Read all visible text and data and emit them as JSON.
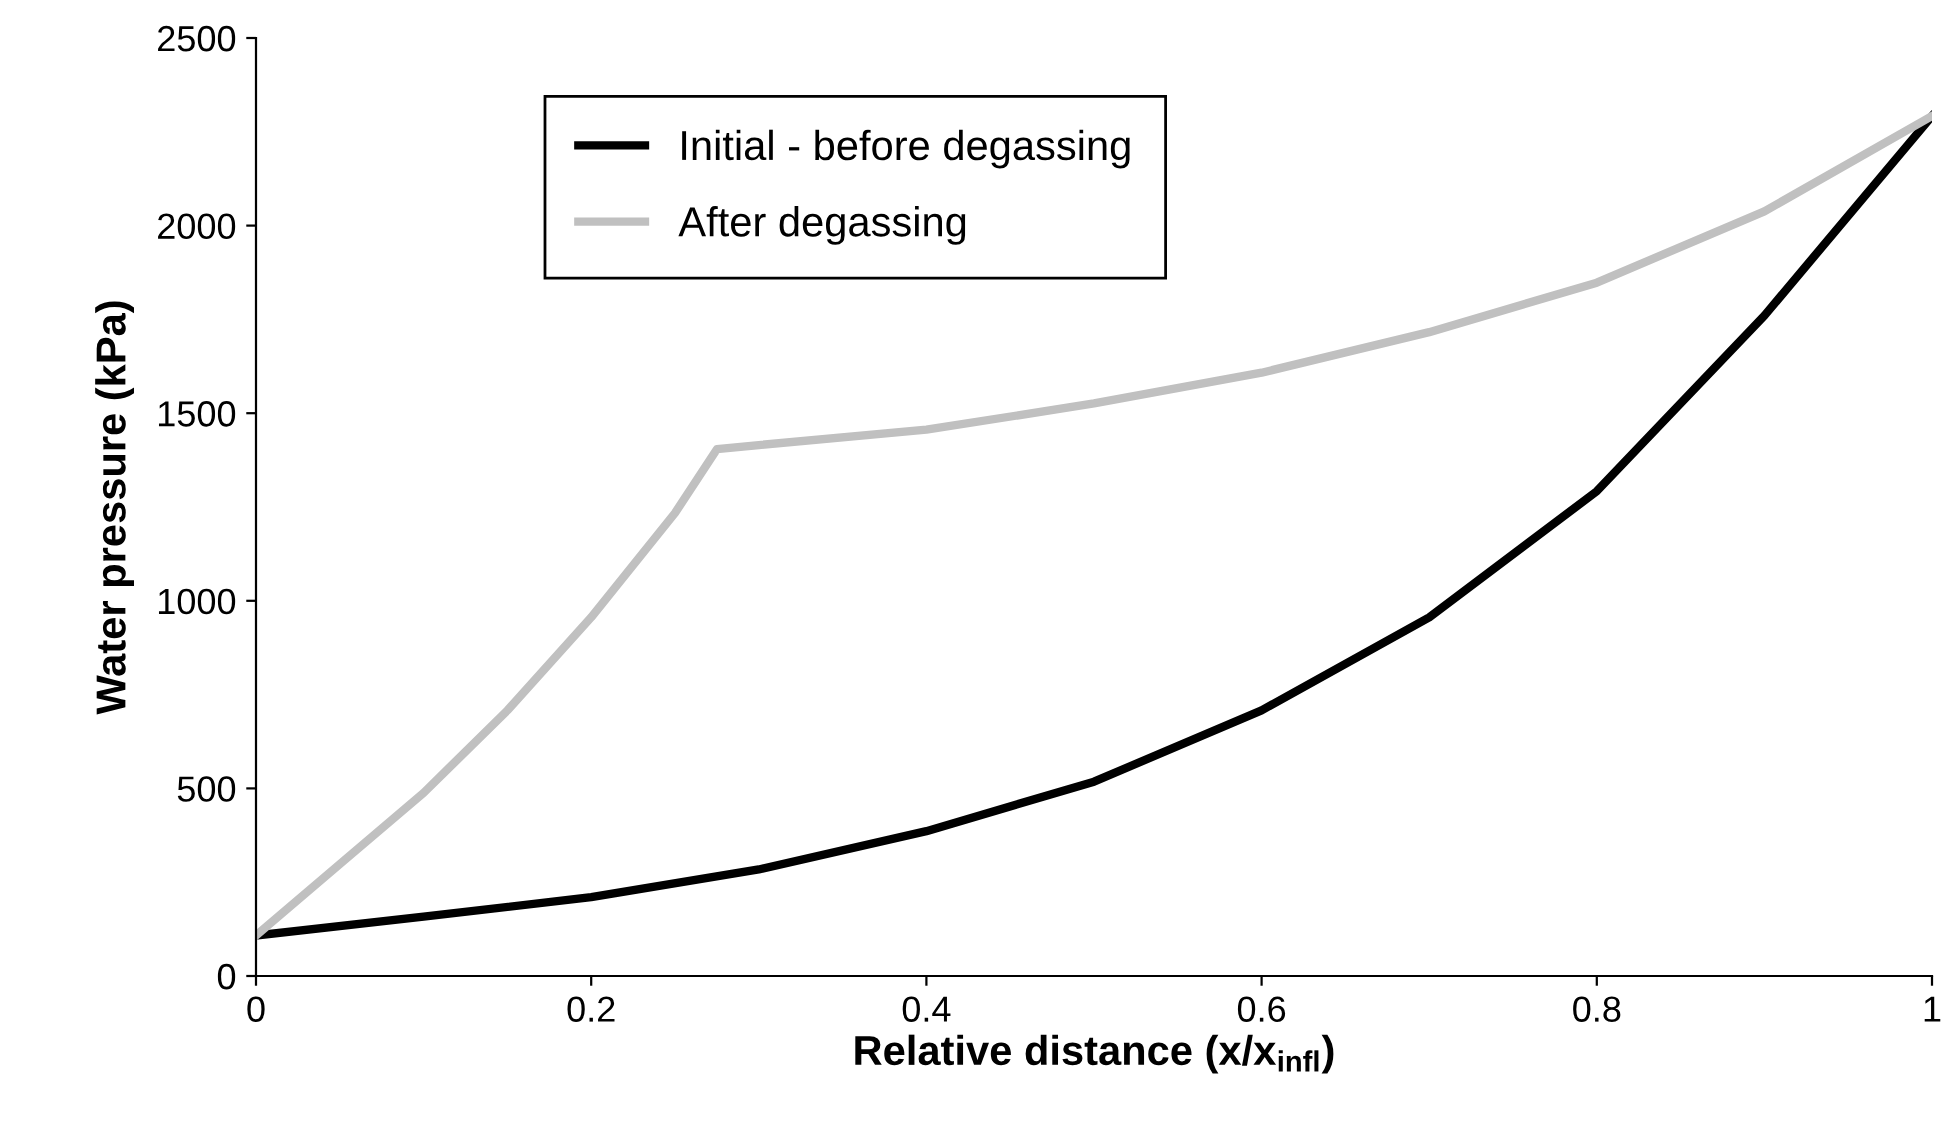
{
  "chart_data": {
    "type": "line",
    "xlabel": "Relative distance (x/x$_{infl}$)",
    "ylabel": "Water pressure (kPa)",
    "xlim": [
      0,
      1
    ],
    "xticks": [
      0,
      0.2,
      0.4,
      0.6,
      0.8,
      1
    ],
    "ylim": [
      0,
      2500
    ],
    "yticks": [
      0,
      500,
      1000,
      1500,
      2000,
      2500
    ],
    "grid": false,
    "legend": "top left",
    "marker": "none",
    "line_style": "solid",
    "series": [
      {
        "name": "Initial - before degassing",
        "color": "#000000",
        "x": [
          0,
          0.1,
          0.2,
          0.3,
          0.4,
          0.5,
          0.6,
          0.7,
          0.8,
          0.9,
          1
        ],
        "values": [
          108,
          158,
          210,
          284,
          386,
          518,
          708,
          956,
          1292,
          1760,
          2292
        ]
      },
      {
        "name": "After degassing",
        "color": "#c0c0c0",
        "x": [
          0,
          0.05,
          0.1,
          0.15,
          0.2,
          0.25,
          0.275,
          0.3,
          0.4,
          0.5,
          0.6,
          0.7,
          0.8,
          0.9,
          1
        ],
        "values": [
          108,
          298,
          488,
          708,
          956,
          1234,
          1404,
          1415,
          1456,
          1526,
          1608,
          1716,
          1848,
          2038,
          2292
        ]
      }
    ]
  }
}
